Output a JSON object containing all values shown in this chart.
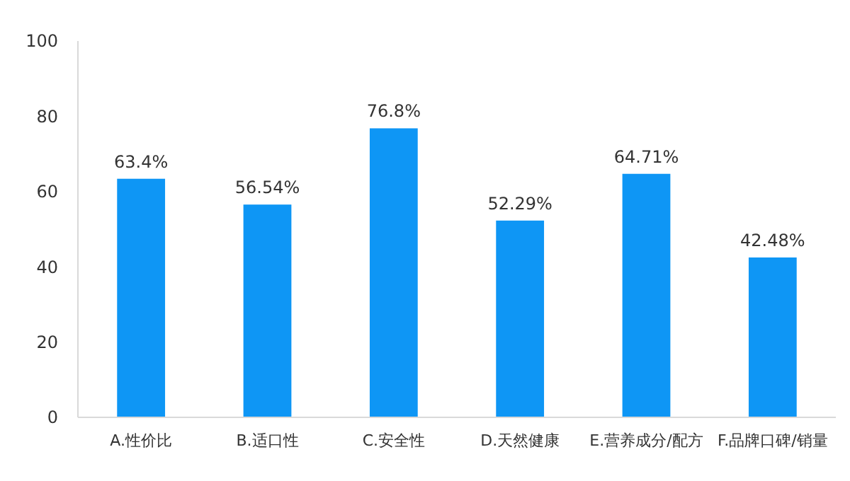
{
  "chart_data": {
    "type": "bar",
    "categories": [
      "A.性价比",
      "B.适口性",
      "C.安全性",
      "D.天然健康",
      "E.营养成分/配方",
      "F.品牌口碑/销量"
    ],
    "values": [
      63.4,
      56.54,
      76.8,
      52.29,
      64.71,
      42.48
    ],
    "value_labels": [
      "63.4%",
      "56.54%",
      "76.8%",
      "52.29%",
      "64.71%",
      "42.48%"
    ],
    "color": "#0e96f5",
    "ylim": [
      0,
      100
    ],
    "yticks": [
      0,
      20,
      40,
      60,
      80,
      100
    ]
  }
}
